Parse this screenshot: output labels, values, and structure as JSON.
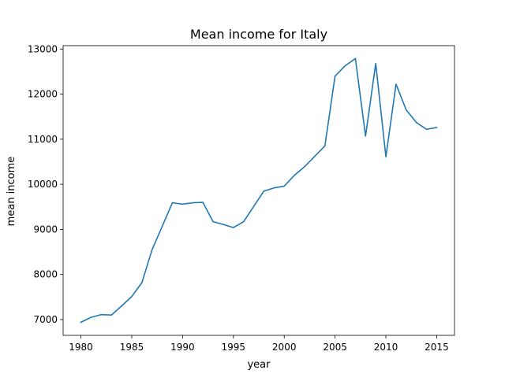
{
  "chart_data": {
    "type": "line",
    "title": "Mean income for Italy",
    "xlabel": "year",
    "ylabel": "mean income",
    "xlim": [
      1978.25,
      2016.75
    ],
    "ylim": [
      6650,
      13075
    ],
    "xticks": [
      1980,
      1985,
      1990,
      1995,
      2000,
      2005,
      2010,
      2015
    ],
    "yticks": [
      7000,
      8000,
      9000,
      10000,
      11000,
      12000,
      13000
    ],
    "grid": false,
    "legend": "none",
    "series": [
      {
        "color": "#1f77b4",
        "x": [
          1980,
          1981,
          1982,
          1983,
          1984,
          1985,
          1986,
          1987,
          1988,
          1989,
          1990,
          1991,
          1992,
          1993,
          1994,
          1995,
          1996,
          1997,
          1998,
          1999,
          2000,
          2001,
          2002,
          2003,
          2004,
          2005,
          2006,
          2007,
          2008,
          2009,
          2010,
          2011,
          2012,
          2013,
          2014,
          2015
        ],
        "y": [
          6940,
          7050,
          7110,
          7100,
          7300,
          7510,
          7820,
          8550,
          9070,
          9590,
          9560,
          9590,
          9600,
          9170,
          9110,
          9040,
          9170,
          9510,
          9850,
          9920,
          9960,
          10200,
          10390,
          10620,
          10850,
          12400,
          12630,
          12790,
          11070,
          12680,
          10610,
          12220,
          11650,
          11370,
          11220,
          11260
        ]
      }
    ]
  }
}
